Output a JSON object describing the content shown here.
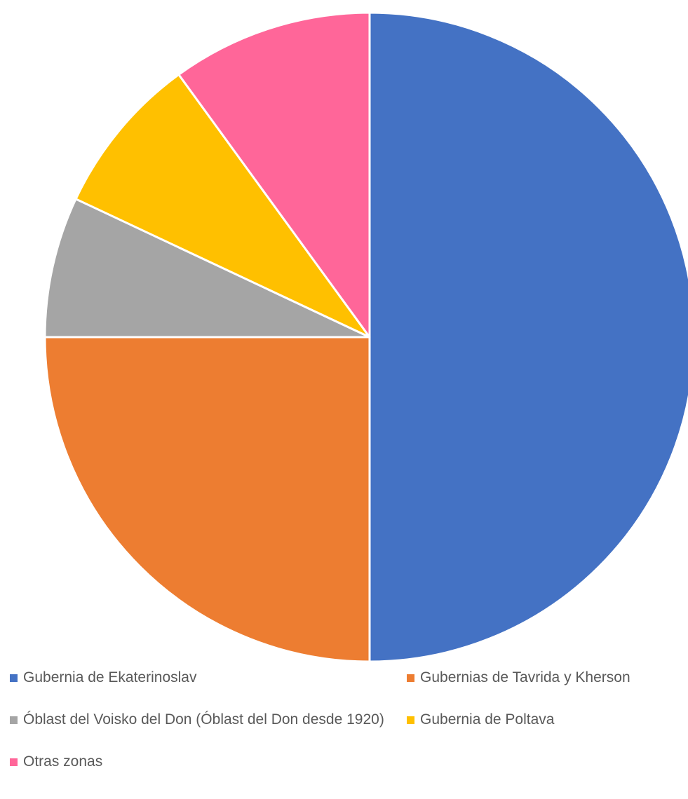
{
  "chart_data": {
    "type": "pie",
    "title": "",
    "start_angle": "top (12 o'clock), clockwise",
    "legend_position": "bottom",
    "slices": [
      {
        "label": "Gubernia de Ekaterinoslav",
        "value": 50.0,
        "color": "#4472C4"
      },
      {
        "label": "Gubernias de Tavrida y Kherson",
        "value": 25.0,
        "color": "#ED7D31"
      },
      {
        "label": "Óblast del Voisko del Don (Óblast del Don desde 1920)",
        "value": 7.0,
        "color": "#A5A5A5"
      },
      {
        "label": "Gubernia de Poltava",
        "value": 8.0,
        "color": "#FFC000"
      },
      {
        "label": "Otras zonas",
        "value": 10.0,
        "color": "#FF6699"
      }
    ]
  }
}
